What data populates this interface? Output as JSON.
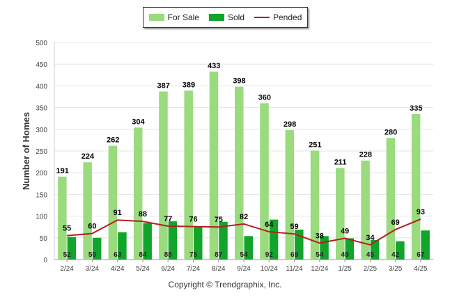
{
  "chart_data": {
    "type": "bar",
    "title": "",
    "ylabel": "Number of Homes",
    "xlabel": "",
    "ylim": [
      0,
      500
    ],
    "yticks": [
      0,
      50,
      100,
      150,
      200,
      250,
      300,
      350,
      400,
      450,
      500
    ],
    "grid": true,
    "legend_position": "top-center",
    "categories": [
      "2/24",
      "3/24",
      "4/24",
      "5/24",
      "6/24",
      "7/24",
      "8/24",
      "9/24",
      "10/24",
      "11/24",
      "12/24",
      "1/25",
      "2/25",
      "3/25",
      "4/25"
    ],
    "series": [
      {
        "name": "For Sale",
        "kind": "bar",
        "color": "#9ADB7E",
        "values": [
          191,
          224,
          262,
          304,
          387,
          389,
          433,
          398,
          360,
          298,
          251,
          211,
          228,
          280,
          335
        ]
      },
      {
        "name": "Sold",
        "kind": "bar",
        "color": "#12A52C",
        "values": [
          52,
          50,
          63,
          84,
          88,
          75,
          87,
          54,
          92,
          69,
          54,
          49,
          45,
          42,
          67
        ]
      },
      {
        "name": "Pended",
        "kind": "line",
        "color": "#B41E1E",
        "values": [
          55,
          60,
          91,
          88,
          77,
          76,
          75,
          82,
          64,
          59,
          38,
          49,
          34,
          69,
          93
        ]
      }
    ]
  },
  "footer": {
    "copyright": "Copyright © Trendgraphix, Inc."
  }
}
